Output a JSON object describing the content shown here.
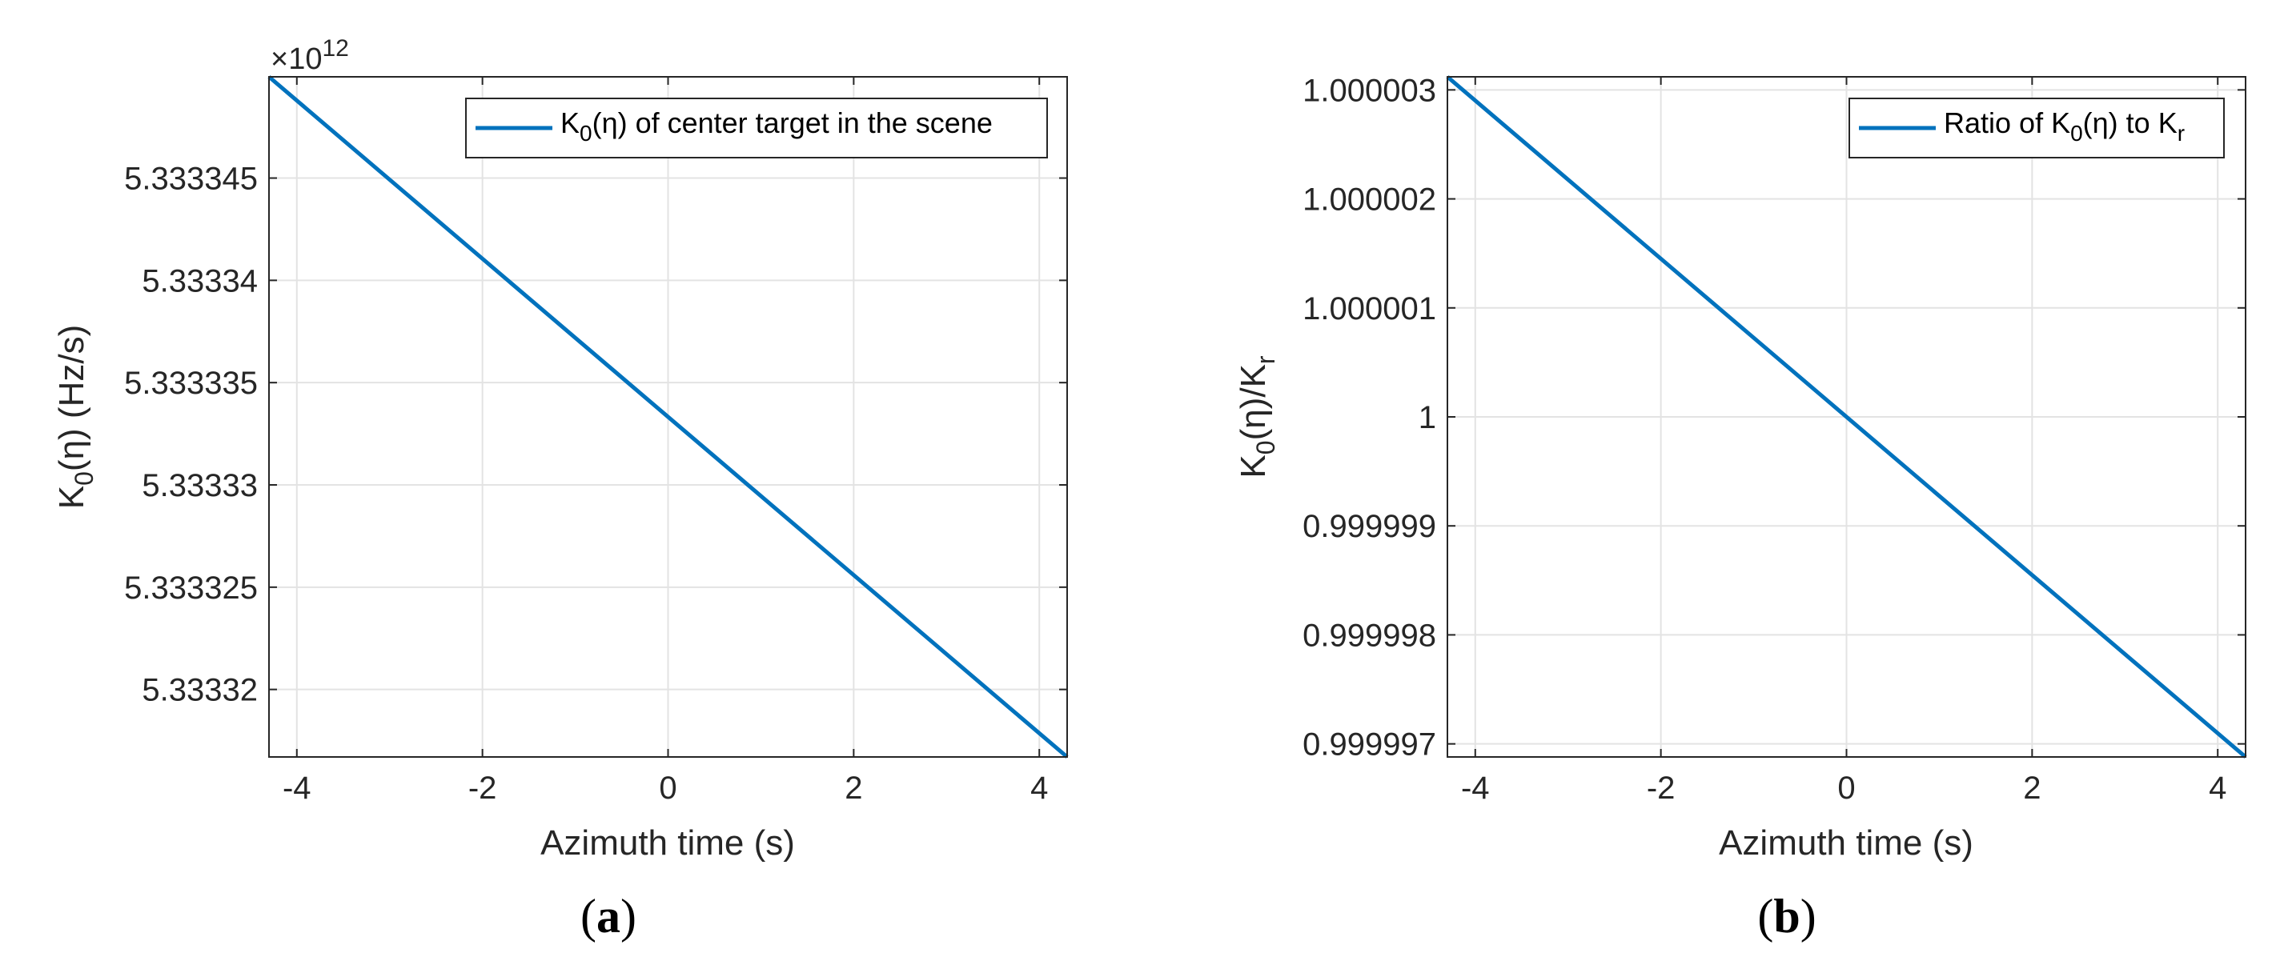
{
  "figure": {
    "panels": [
      {
        "caption_open": "(",
        "caption_letter": "a",
        "caption_close": ")",
        "multiplier_base": "×10",
        "multiplier_exp": "12",
        "ylabel_main": "K",
        "ylabel_sub": "0",
        "ylabel_rest": "(η) (Hz/s)",
        "legend": {
          "pre": "K",
          "sub": "0",
          "post": "(η) of center target in the scene"
        }
      },
      {
        "caption_open": "(",
        "caption_letter": "b",
        "caption_close": ")",
        "ylabel_main": "K",
        "ylabel_sub": "0",
        "ylabel_mid": "(η)/K",
        "ylabel_sub2": "r",
        "legend": {
          "pre": "Ratio of K",
          "sub": "0",
          "mid": "(η) to K",
          "sub2": "r"
        }
      }
    ]
  },
  "chart_data": [
    {
      "type": "line",
      "title": "",
      "xlabel": "Azimuth time (s)",
      "ylabel": "K0(η) (Hz/s)",
      "y_multiplier": "×10^12",
      "xlim": [
        -4.3,
        4.3
      ],
      "ylim": [
        5.3333167,
        5.33334995
      ],
      "x_ticks": [
        -4,
        -2,
        0,
        2,
        4
      ],
      "x_tick_labels": [
        "-4",
        "-2",
        "0",
        "2",
        "4"
      ],
      "y_ticks": [
        5.33332,
        5.333325,
        5.33333,
        5.333335,
        5.33334,
        5.333345
      ],
      "y_tick_labels": [
        "5.33332",
        "5.333325",
        "5.33333",
        "5.333335",
        "5.33334",
        "5.333345"
      ],
      "grid": true,
      "legend_position": "top-right",
      "series": [
        {
          "name": "K0(η) of center target in the scene",
          "color": "#0072BD",
          "x": [
            -4.3,
            4.3
          ],
          "y": [
            5.33334995,
            5.3333167
          ]
        }
      ]
    },
    {
      "type": "line",
      "title": "",
      "xlabel": "Azimuth time (s)",
      "ylabel": "K0(η)/Kr",
      "xlim": [
        -4.3,
        4.3
      ],
      "ylim": [
        0.99999688,
        1.00000312
      ],
      "x_ticks": [
        -4,
        -2,
        0,
        2,
        4
      ],
      "x_tick_labels": [
        "-4",
        "-2",
        "0",
        "2",
        "4"
      ],
      "y_ticks": [
        0.999997,
        0.999998,
        0.999999,
        1,
        1.000001,
        1.000002,
        1.000003
      ],
      "y_tick_labels": [
        "0.999997",
        "0.999998",
        "0.999999",
        "1",
        "1.000001",
        "1.000002",
        "1.000003"
      ],
      "grid": true,
      "legend_position": "top-right",
      "series": [
        {
          "name": "Ratio of K0(η) to Kr",
          "color": "#0072BD",
          "x": [
            -4.3,
            4.3
          ],
          "y": [
            1.00000312,
            0.99999688
          ]
        }
      ]
    }
  ]
}
